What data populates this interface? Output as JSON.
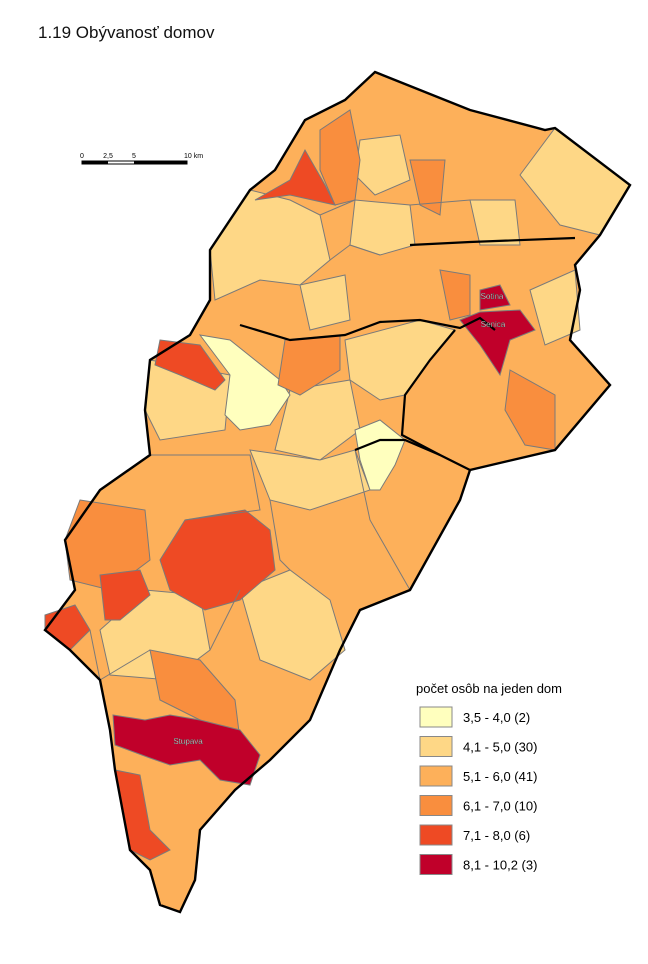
{
  "title": "1.19 Obývanosť domov",
  "scale_bar": {
    "labels": [
      "0",
      "2,5",
      "5",
      "10 km"
    ]
  },
  "places": [
    "Sotina",
    "Senica",
    "Stupava"
  ],
  "legend": {
    "title": "počet osôb na jeden dom",
    "items": [
      {
        "label": "3,5 - 4,0 (2)",
        "color": "#ffffbe"
      },
      {
        "label": "4,1 - 5,0 (30)",
        "color": "#fed786"
      },
      {
        "label": "5,1 - 6,0 (41)",
        "color": "#fdb05a"
      },
      {
        "label": "6,1 - 7,0 (10)",
        "color": "#f98e3e"
      },
      {
        "label": "7,1 - 8,0 (6)",
        "color": "#ee4a24"
      },
      {
        "label": "8,1 - 10,2 (3)",
        "color": "#c0002a"
      }
    ]
  }
}
